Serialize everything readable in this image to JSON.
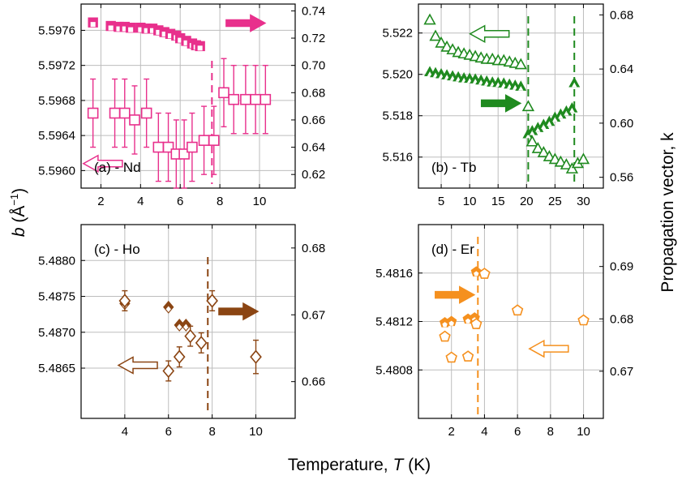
{
  "figure": {
    "ylabel_left_main": "b",
    "ylabel_left_unit": " (Å",
    "ylabel_left_exp": "−1",
    "ylabel_left_close": ")",
    "ylabel_right": "Propagation vector, k",
    "xlabel_main": "Temperature, ",
    "xlabel_T": "T",
    "xlabel_unit": " (K)"
  },
  "colors": {
    "Nd": "#e8308c",
    "Tb": "#1f8a1f",
    "Ho": "#8b4513",
    "Er": "#f5901e"
  },
  "chart_data": [
    {
      "id": "Nd",
      "label": "(a) - Nd",
      "type": "scatter",
      "xlim": [
        1,
        11.8
      ],
      "xticks": [
        2,
        4,
        6,
        8,
        10
      ],
      "ylim_left": [
        5.5958,
        5.5979
      ],
      "yticks_left": [
        5.596,
        5.5964,
        5.5968,
        5.5972,
        5.5976
      ],
      "yticklabels_left": [
        "5.5960",
        "5.5964",
        "5.5968",
        "5.5972",
        "5.5976"
      ],
      "ylim_right": [
        0.61,
        0.745
      ],
      "yticks_right": [
        0.62,
        0.64,
        0.66,
        0.68,
        0.7,
        0.72,
        0.74
      ],
      "yticklabels_right": [
        "0.62",
        "0.64",
        "0.66",
        "0.68",
        "0.70",
        "0.72",
        "0.74"
      ],
      "transition_T": 7.6,
      "b_series": {
        "marker": "square-filled-white",
        "x": [
          1.6,
          2.5,
          2.9,
          3.2,
          3.5,
          4.0,
          4.3,
          4.6,
          4.9,
          5.2,
          5.5,
          5.8,
          6.0,
          6.3,
          6.6,
          6.8,
          7.0
        ],
        "y": [
          5.59769,
          5.59765,
          5.59764,
          5.59764,
          5.59763,
          5.59763,
          5.59762,
          5.59762,
          5.5976,
          5.59758,
          5.59756,
          5.59754,
          5.59751,
          5.59748,
          5.59745,
          5.59743,
          5.59742
        ]
      },
      "k_series": {
        "marker": "square-open",
        "x": [
          1.6,
          2.7,
          3.2,
          3.7,
          4.3,
          4.9,
          5.4,
          5.8,
          6.2,
          6.6,
          7.2,
          7.7,
          8.2,
          8.7,
          9.3,
          9.8,
          10.3
        ],
        "y": [
          0.665,
          0.665,
          0.665,
          0.66,
          0.665,
          0.64,
          0.64,
          0.635,
          0.635,
          0.64,
          0.645,
          0.645,
          0.68,
          0.675,
          0.675,
          0.675,
          0.675
        ],
        "yerr": [
          0.025,
          0.025,
          0.025,
          0.025,
          0.025,
          0.025,
          0.025,
          0.025,
          0.025,
          0.025,
          0.025,
          0.025,
          0.025,
          0.025,
          0.025,
          0.025,
          0.025
        ]
      },
      "arrows": [
        {
          "direction": "right",
          "T": 9.3,
          "value": 0.731,
          "axis": "right",
          "style": "filled"
        },
        {
          "direction": "left",
          "T": 2.1,
          "value": 5.59608,
          "axis": "left",
          "style": "open"
        }
      ]
    },
    {
      "id": "Tb",
      "label": "(b) - Tb",
      "type": "scatter",
      "xlim": [
        1,
        33.5
      ],
      "xticks": [
        5,
        10,
        15,
        20,
        25,
        30
      ],
      "ylim_left": [
        5.5145,
        5.5234
      ],
      "yticks_left": [
        5.516,
        5.518,
        5.52,
        5.522
      ],
      "yticklabels_left": [
        "5.516",
        "5.518",
        "5.520",
        "5.522"
      ],
      "ylim_right": [
        0.552,
        0.688
      ],
      "yticks_right": [
        0.56,
        0.6,
        0.64,
        0.68
      ],
      "yticklabels_right": [
        "0.56",
        "0.60",
        "0.64",
        "0.68"
      ],
      "transition_T": [
        20.3,
        28.4
      ],
      "b_series": {
        "marker": "triangle-filled-white",
        "x": [
          3,
          4,
          5,
          6,
          7,
          8,
          9,
          10,
          11,
          12,
          13,
          14,
          15,
          16,
          17,
          18,
          19,
          20.3,
          21,
          22,
          23,
          24,
          25,
          26,
          27,
          28
        ],
        "y": [
          5.5201,
          5.52005,
          5.52,
          5.51995,
          5.5199,
          5.51985,
          5.5198,
          5.51978,
          5.51975,
          5.5197,
          5.51965,
          5.5196,
          5.51958,
          5.51955,
          5.5195,
          5.51945,
          5.5194,
          5.5171,
          5.51725,
          5.5174,
          5.51755,
          5.5177,
          5.5179,
          5.51805,
          5.5182,
          5.51835
        ]
      },
      "b_series_high": {
        "marker": "triangle-filled-white",
        "x": [
          28.4
        ],
        "y": [
          5.51957
        ]
      },
      "k_series": {
        "marker": "triangle-open",
        "x": [
          3,
          4,
          5,
          6,
          7,
          8,
          9,
          10,
          11,
          12,
          13,
          14,
          15,
          16,
          17,
          18,
          19,
          20.3,
          21,
          22,
          23,
          24,
          25,
          26,
          27,
          28,
          29,
          30
        ],
        "y": [
          0.676,
          0.664,
          0.659,
          0.656,
          0.654,
          0.652,
          0.651,
          0.65,
          0.649,
          0.648,
          0.647,
          0.647,
          0.646,
          0.646,
          0.645,
          0.644,
          0.643,
          0.612,
          0.586,
          0.581,
          0.578,
          0.575,
          0.573,
          0.571,
          0.569,
          0.566,
          0.57,
          0.573
        ]
      },
      "arrows": [
        {
          "direction": "left",
          "T": 13.5,
          "value": 0.666,
          "axis": "right",
          "style": "open"
        },
        {
          "direction": "right",
          "T": 15.5,
          "value": 5.5186,
          "axis": "left",
          "style": "filled"
        }
      ]
    },
    {
      "id": "Ho",
      "label": "(c) - Ho",
      "type": "scatter",
      "xlim": [
        2,
        11.8
      ],
      "xticks": [
        4,
        6,
        8,
        10
      ],
      "ylim_left": [
        5.4858,
        5.4885
      ],
      "yticks_left": [
        5.4865,
        5.487,
        5.4875,
        5.488
      ],
      "yticklabels_left": [
        "5.4865",
        "5.4870",
        "5.4875",
        "5.4880"
      ],
      "ylim_right": [
        0.6545,
        0.6835
      ],
      "yticks_right": [
        0.66,
        0.67,
        0.68
      ],
      "yticklabels_right": [
        "0.66",
        "0.67",
        "0.68"
      ],
      "transition_T": 7.8,
      "b_series": {
        "marker": "diamond-filled-white",
        "x": [
          4.0,
          6.0,
          6.5,
          6.8
        ],
        "y": [
          5.4874,
          5.48735,
          5.4871,
          5.4871
        ]
      },
      "k_series": {
        "marker": "diamond-open",
        "x": [
          4.0,
          6.0,
          6.5,
          7.0,
          7.5,
          8.0,
          10.0
        ],
        "y": [
          0.6721,
          0.6616,
          0.6637,
          0.6668,
          0.6658,
          0.6721,
          0.6637
        ],
        "yerr": [
          0.0015,
          0.0015,
          0.0015,
          0.0015,
          0.0015,
          0.0015,
          0.0025
        ]
      },
      "arrows": [
        {
          "direction": "right",
          "T": 9.2,
          "value": 0.6705,
          "axis": "right",
          "style": "filled"
        },
        {
          "direction": "left",
          "T": 4.6,
          "value": 5.48654,
          "axis": "left",
          "style": "open"
        }
      ]
    },
    {
      "id": "Er",
      "label": "(d) - Er",
      "type": "scatter",
      "xlim": [
        0,
        11.2
      ],
      "xticks": [
        2,
        4,
        6,
        8,
        10
      ],
      "ylim_left": [
        5.4804,
        5.482
      ],
      "yticks_left": [
        5.4808,
        5.4812,
        5.4816
      ],
      "yticklabels_left": [
        "5.4808",
        "5.4812",
        "5.4816"
      ],
      "ylim_right": [
        0.661,
        0.698
      ],
      "yticks_right": [
        0.67,
        0.68,
        0.69
      ],
      "yticklabels_right": [
        "0.67",
        "0.68",
        "0.69"
      ],
      "transition_T": 3.6,
      "b_series": {
        "marker": "pentagon-filled-white",
        "x": [
          1.6,
          2.0,
          3.0,
          3.4,
          3.5
        ],
        "y": [
          5.48119,
          5.4812,
          5.48122,
          5.48123,
          5.48161
        ]
      },
      "k_series": {
        "marker": "pentagon-open",
        "x": [
          1.6,
          2.0,
          3.0,
          3.5,
          4.0,
          6.0,
          10.0
        ],
        "y": [
          0.6766,
          0.6726,
          0.6728,
          0.679,
          0.6886,
          0.6816,
          0.6797
        ]
      },
      "arrows": [
        {
          "direction": "right",
          "T": 2.2,
          "value": 5.48142,
          "axis": "left",
          "style": "filled"
        },
        {
          "direction": "left",
          "T": 7.9,
          "value": 0.6743,
          "axis": "right",
          "style": "open"
        }
      ]
    }
  ]
}
